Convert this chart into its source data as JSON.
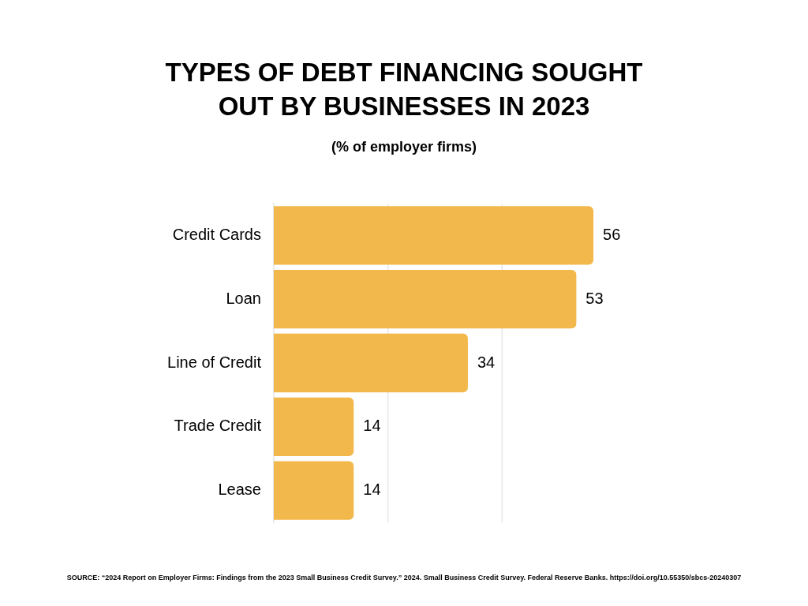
{
  "chart_data": {
    "type": "bar",
    "orientation": "horizontal",
    "title": "TYPES OF DEBT FINANCING SOUGHT OUT BY BUSINESSES IN 2023",
    "subtitle": "(% of employer firms)",
    "categories": [
      "Credit Cards",
      "Loan",
      "Line of Credit",
      "Trade Credit",
      "Lease"
    ],
    "values": [
      56,
      53,
      34,
      14,
      14
    ],
    "color": "#f2b84b",
    "ref_lines": [
      {
        "axis": "x",
        "value": 20,
        "color": "#e6e6e6"
      },
      {
        "axis": "x",
        "value": 40,
        "color": "#e6e6e6"
      }
    ],
    "tick_labels": "y",
    "data_labels": true,
    "legend": false,
    "annotations": [
      "SOURCE: “2024 Report on Employer Firms: Findings from the 2023 Small Business Credit Survey.” 2024. Small Business Credit Survey. Federal Reserve Banks. https://doi.org/10.55350/sbcs-20240307"
    ]
  }
}
